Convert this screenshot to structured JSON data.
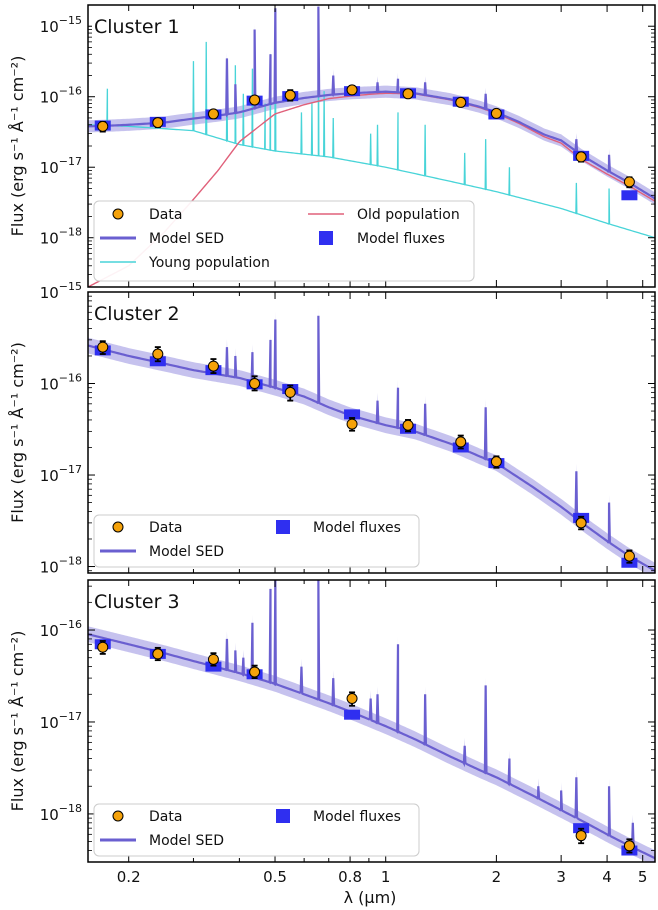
{
  "chart_data": {
    "type": "line",
    "xlabel": "λ (μm)",
    "ylabel": "Flux (erg s⁻¹ Å⁻¹ cm⁻²)",
    "xlim": [
      0.155,
      5.4
    ],
    "x_scale": "log",
    "y_scale": "log",
    "x_ticks": [
      {
        "value": 0.2,
        "label": "0.2"
      },
      {
        "value": 0.5,
        "label": "0.5"
      },
      {
        "value": 0.8,
        "label": "0.8"
      },
      {
        "value": 1,
        "label": "1"
      },
      {
        "value": 2,
        "label": "2"
      },
      {
        "value": 3,
        "label": "3"
      },
      {
        "value": 4,
        "label": "4"
      },
      {
        "value": 5,
        "label": "5"
      }
    ],
    "colors": {
      "data": "#f5a20a",
      "model_sed": "#6a5fd0",
      "model_band": "#b3aee8",
      "model_fluxes": "#2f2ff0",
      "young": "#48d4d8",
      "old": "#e0607a"
    },
    "panels": [
      {
        "title": "Cluster 1",
        "ylim": [
          2e-19,
          2e-15
        ],
        "y_ticks": [
          {
            "value": 1e-18,
            "base": "10",
            "exp": "−18"
          },
          {
            "value": 1e-17,
            "base": "10",
            "exp": "−17"
          },
          {
            "value": 1e-16,
            "base": "10",
            "exp": "−16"
          },
          {
            "value": 1e-15,
            "base": "10",
            "exp": "−15"
          }
        ],
        "legend": [
          "Data",
          "Model SED",
          "Young population",
          "Old population",
          "Model fluxes"
        ],
        "data": {
          "x": [
            0.17,
            0.24,
            0.34,
            0.44,
            0.55,
            0.81,
            1.15,
            1.6,
            2.0,
            3.4,
            4.6
          ],
          "y": [
            3.8e-17,
            4.3e-17,
            5.7e-17,
            9e-17,
            1.05e-16,
            1.25e-16,
            1.1e-16,
            8.3e-17,
            5.8e-17,
            1.4e-17,
            6.2e-18
          ],
          "err_low": [
            3.2e-17,
            3.7e-17,
            5e-17,
            8e-17,
            8.8e-17,
            1.1e-16,
            9.8e-17,
            7.4e-17,
            5.1e-17,
            1.2e-17,
            5.2e-18
          ],
          "err_high": [
            4.4e-17,
            4.9e-17,
            6.4e-17,
            1e-16,
            1.24e-16,
            1.42e-16,
            1.22e-16,
            9.2e-17,
            6.5e-17,
            1.6e-17,
            7.2e-18
          ]
        },
        "model_fluxes": {
          "x": [
            0.17,
            0.24,
            0.34,
            0.44,
            0.55,
            0.81,
            1.15,
            1.6,
            2.0,
            3.4,
            4.6
          ],
          "y": [
            3.9e-17,
            4.4e-17,
            5.6e-17,
            8.8e-17,
            1.02e-16,
            1.2e-16,
            1.12e-16,
            8.5e-17,
            5.6e-17,
            1.45e-17,
            4e-18
          ]
        },
        "model_sed": {
          "x": [
            0.155,
            0.18,
            0.2,
            0.25,
            0.3,
            0.35,
            0.4,
            0.5,
            0.6,
            0.7,
            0.8,
            0.9,
            1.0,
            1.2,
            1.5,
            1.8,
            2.0,
            2.3,
            2.7,
            3.0,
            3.4,
            4.0,
            4.6,
            5.4
          ],
          "y": [
            3.8e-17,
            3.9e-17,
            4e-17,
            4.3e-17,
            4.9e-17,
            5.4e-17,
            6e-17,
            8.2e-17,
            9.6e-17,
            1.06e-16,
            1.12e-16,
            1.15e-16,
            1.18e-16,
            1.12e-16,
            9.2e-17,
            7.2e-17,
            6e-17,
            4.4e-17,
            2.9e-17,
            2.4e-17,
            1.5e-17,
            9e-18,
            6e-18,
            3.6e-18
          ],
          "lines": [
            {
              "x": 0.37,
              "y": 3.5e-16
            },
            {
              "x": 0.39,
              "y": 1.5e-16
            },
            {
              "x": 0.44,
              "y": 9e-16
            },
            {
              "x": 0.486,
              "y": 4e-16
            },
            {
              "x": 0.501,
              "y": 1.8e-15
            },
            {
              "x": 0.656,
              "y": 1.9e-15
            },
            {
              "x": 0.72,
              "y": 2e-16
            },
            {
              "x": 0.95,
              "y": 1.6e-16
            },
            {
              "x": 1.08,
              "y": 1.8e-16
            },
            {
              "x": 1.28,
              "y": 1.6e-16
            },
            {
              "x": 1.87,
              "y": 1.1e-16
            },
            {
              "x": 3.3,
              "y": 2.5e-17
            },
            {
              "x": 4.05,
              "y": 1.5e-17
            }
          ]
        },
        "young": {
          "x": [
            0.155,
            0.2,
            0.3,
            0.4,
            0.5,
            0.7,
            1.0,
            1.5,
            2.0,
            3.0,
            4.0,
            5.4
          ],
          "y": [
            4e-17,
            3.8e-17,
            3.3e-17,
            2.1e-17,
            1.7e-17,
            1.4e-17,
            1e-17,
            6.3e-18,
            4.5e-18,
            2.6e-18,
            1.6e-18,
            1e-18
          ],
          "lines": [
            {
              "x": 0.175,
              "y": 1.3e-16
            },
            {
              "x": 0.3,
              "y": 3.2e-16
            },
            {
              "x": 0.325,
              "y": 6e-16
            },
            {
              "x": 0.37,
              "y": 1.6e-16
            },
            {
              "x": 0.39,
              "y": 2.8e-16
            },
            {
              "x": 0.41,
              "y": 1.1e-16
            },
            {
              "x": 0.434,
              "y": 2.5e-16
            },
            {
              "x": 0.47,
              "y": 8e-17
            },
            {
              "x": 0.486,
              "y": 4e-16
            },
            {
              "x": 0.501,
              "y": 1.5e-15
            },
            {
              "x": 0.59,
              "y": 6e-17
            },
            {
              "x": 0.63,
              "y": 8e-17
            },
            {
              "x": 0.656,
              "y": 1.3e-15
            },
            {
              "x": 0.68,
              "y": 1.2e-16
            },
            {
              "x": 0.72,
              "y": 5e-17
            },
            {
              "x": 0.91,
              "y": 3e-17
            },
            {
              "x": 0.95,
              "y": 4e-17
            },
            {
              "x": 1.08,
              "y": 6e-17
            },
            {
              "x": 1.28,
              "y": 4e-17
            },
            {
              "x": 1.64,
              "y": 1.6e-17
            },
            {
              "x": 1.87,
              "y": 2.5e-17
            },
            {
              "x": 2.17,
              "y": 1e-17
            },
            {
              "x": 3.3,
              "y": 6e-18
            },
            {
              "x": 4.05,
              "y": 5e-18
            }
          ]
        },
        "old": {
          "x": [
            0.155,
            0.2,
            0.25,
            0.3,
            0.35,
            0.4,
            0.5,
            0.6,
            0.7,
            0.8,
            0.9,
            1.0,
            1.2,
            1.5,
            1.8,
            2.0,
            2.3,
            2.7,
            3.0,
            3.4,
            4.0,
            4.6,
            5.4
          ],
          "y": [
            2e-19,
            4e-19,
            1.2e-18,
            3.5e-18,
            9e-18,
            2.3e-17,
            5.7e-17,
            7.7e-17,
            9.4e-17,
            1.02e-16,
            1.08e-16,
            1.12e-16,
            1.1e-16,
            9e-17,
            7e-17,
            5.8e-17,
            4.2e-17,
            2.7e-17,
            2.2e-17,
            1.3e-17,
            8e-18,
            5.4e-18,
            3.3e-18
          ]
        }
      },
      {
        "title": "Cluster 2",
        "ylim": [
          8.5e-19,
          1e-15
        ],
        "y_ticks": [
          {
            "value": 1e-18,
            "base": "10",
            "exp": "−18"
          },
          {
            "value": 1e-17,
            "base": "10",
            "exp": "−17"
          },
          {
            "value": 1e-16,
            "base": "10",
            "exp": "−16"
          },
          {
            "value": 1e-15,
            "base": "10",
            "exp": "−15"
          }
        ],
        "legend": [
          "Data",
          "Model SED",
          "Model fluxes"
        ],
        "data": {
          "x": [
            0.17,
            0.24,
            0.34,
            0.44,
            0.55,
            0.81,
            1.15,
            1.6,
            2.0,
            3.4,
            4.6
          ],
          "y": [
            2.5e-16,
            2.1e-16,
            1.55e-16,
            1e-16,
            8e-17,
            3.6e-17,
            3.5e-17,
            2.3e-17,
            1.4e-17,
            3e-18,
            1.3e-18
          ],
          "err_low": [
            2.1e-16,
            1.75e-16,
            1.3e-16,
            8.4e-17,
            6.5e-17,
            3.05e-17,
            3e-17,
            1.95e-17,
            1.2e-17,
            2.55e-18,
            1.1e-18
          ],
          "err_high": [
            2.9e-16,
            2.5e-16,
            1.85e-16,
            1.2e-16,
            9.5e-17,
            4.2e-17,
            4e-17,
            2.7e-17,
            1.6e-17,
            3.5e-18,
            1.5e-18
          ]
        },
        "model_fluxes": {
          "x": [
            0.17,
            0.24,
            0.34,
            0.44,
            0.55,
            0.81,
            1.15,
            1.6,
            2.0,
            3.4,
            4.6
          ],
          "y": [
            2.3e-16,
            1.75e-16,
            1.4e-16,
            9.8e-17,
            8.7e-17,
            4.6e-17,
            3.2e-17,
            2e-17,
            1.35e-17,
            3.4e-18,
            1.1e-18
          ]
        },
        "model_sed": {
          "x": [
            0.155,
            0.2,
            0.25,
            0.3,
            0.4,
            0.5,
            0.6,
            0.7,
            0.8,
            1.0,
            1.2,
            1.5,
            1.8,
            2.0,
            2.5,
            3.0,
            3.5,
            4.0,
            4.6,
            5.4
          ],
          "y": [
            2.6e-16,
            2e-16,
            1.65e-16,
            1.4e-16,
            1.15e-16,
            9e-17,
            7.2e-17,
            5.5e-17,
            4.5e-17,
            3.5e-17,
            3e-17,
            2.2e-17,
            1.6e-17,
            1.35e-17,
            7.5e-18,
            4.5e-18,
            2.8e-18,
            1.9e-18,
            1.3e-18,
            9e-19
          ],
          "lines": [
            {
              "x": 0.37,
              "y": 2.5e-16
            },
            {
              "x": 0.39,
              "y": 2e-16
            },
            {
              "x": 0.434,
              "y": 2.2e-16
            },
            {
              "x": 0.486,
              "y": 3e-16
            },
            {
              "x": 0.501,
              "y": 5e-16
            },
            {
              "x": 0.656,
              "y": 5.5e-16
            },
            {
              "x": 0.95,
              "y": 6.5e-17
            },
            {
              "x": 1.08,
              "y": 9e-17
            },
            {
              "x": 1.28,
              "y": 6e-17
            },
            {
              "x": 1.87,
              "y": 5.5e-17
            },
            {
              "x": 3.3,
              "y": 1.1e-17
            },
            {
              "x": 4.05,
              "y": 5e-18
            }
          ]
        }
      },
      {
        "title": "Cluster 3",
        "ylim": [
          3e-19,
          3.5e-16
        ],
        "y_ticks": [
          {
            "value": 1e-18,
            "base": "10",
            "exp": "−18"
          },
          {
            "value": 1e-17,
            "base": "10",
            "exp": "−17"
          },
          {
            "value": 1e-16,
            "base": "10",
            "exp": "−16"
          }
        ],
        "legend": [
          "Data",
          "Model SED",
          "Model fluxes"
        ],
        "data": {
          "x": [
            0.17,
            0.24,
            0.34,
            0.44,
            0.81,
            3.4,
            4.6
          ],
          "y": [
            6.5e-17,
            5.5e-17,
            4.8e-17,
            3.5e-17,
            1.8e-17,
            5.8e-19,
            4.5e-19
          ],
          "err_low": [
            5.5e-17,
            4.7e-17,
            4.1e-17,
            3e-17,
            1.5e-17,
            4.8e-19,
            3.8e-19
          ],
          "err_high": [
            7.6e-17,
            6.4e-17,
            5.6e-17,
            4.1e-17,
            2.1e-17,
            6.9e-19,
            5.3e-19
          ]
        },
        "model_fluxes": {
          "x": [
            0.17,
            0.24,
            0.34,
            0.44,
            0.81,
            3.4,
            4.6
          ],
          "y": [
            7e-17,
            5.5e-17,
            4e-17,
            3.3e-17,
            1.2e-17,
            7e-19,
            4e-19
          ]
        },
        "model_sed": {
          "x": [
            0.155,
            0.2,
            0.25,
            0.3,
            0.4,
            0.5,
            0.6,
            0.7,
            0.8,
            1.0,
            1.2,
            1.5,
            1.8,
            2.0,
            2.5,
            3.0,
            3.5,
            4.0,
            4.6,
            5.4
          ],
          "y": [
            9e-17,
            7e-17,
            5.6e-17,
            4.6e-17,
            3.4e-17,
            2.6e-17,
            2e-17,
            1.6e-17,
            1.3e-17,
            9e-18,
            6.5e-18,
            4.2e-18,
            3e-18,
            2.5e-18,
            1.6e-18,
            1.1e-18,
            8e-19,
            6e-19,
            4.5e-19,
            3.3e-19
          ],
          "lines": [
            {
              "x": 0.37,
              "y": 8e-17
            },
            {
              "x": 0.39,
              "y": 6e-17
            },
            {
              "x": 0.41,
              "y": 5e-17
            },
            {
              "x": 0.434,
              "y": 1.2e-16
            },
            {
              "x": 0.486,
              "y": 2.8e-16
            },
            {
              "x": 0.501,
              "y": 3.5e-16
            },
            {
              "x": 0.59,
              "y": 4e-17
            },
            {
              "x": 0.656,
              "y": 3.5e-16
            },
            {
              "x": 0.72,
              "y": 3e-17
            },
            {
              "x": 0.91,
              "y": 1.8e-17
            },
            {
              "x": 0.95,
              "y": 2e-17
            },
            {
              "x": 1.08,
              "y": 7e-17
            },
            {
              "x": 1.28,
              "y": 2e-17
            },
            {
              "x": 1.64,
              "y": 5.5e-18
            },
            {
              "x": 1.87,
              "y": 2.5e-17
            },
            {
              "x": 2.17,
              "y": 4e-18
            },
            {
              "x": 2.6,
              "y": 2e-18
            },
            {
              "x": 3.0,
              "y": 1.8e-18
            },
            {
              "x": 3.3,
              "y": 2.5e-18
            },
            {
              "x": 4.05,
              "y": 2e-18
            },
            {
              "x": 4.7,
              "y": 8e-19
            }
          ]
        }
      }
    ]
  }
}
